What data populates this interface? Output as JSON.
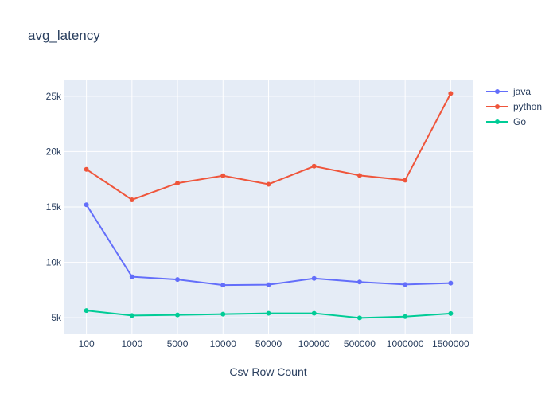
{
  "chart_data": {
    "type": "line",
    "title": "avg_latency",
    "xlabel": "Csv Row Count",
    "ylabel": "",
    "categories": [
      "100",
      "1000",
      "5000",
      "10000",
      "50000",
      "100000",
      "500000",
      "1000000",
      "1500000"
    ],
    "ylim": [
      3500,
      26500
    ],
    "yticks": [
      5000,
      10000,
      15000,
      20000,
      25000
    ],
    "ytick_labels": [
      "5k",
      "10k",
      "15k",
      "20k",
      "25k"
    ],
    "grid": true,
    "legend_position": "top-right",
    "series": [
      {
        "name": "java",
        "color": "#636efa",
        "values": [
          15200,
          8700,
          8450,
          7950,
          7980,
          8550,
          8230,
          8000,
          8130
        ]
      },
      {
        "name": "python",
        "color": "#ef553b",
        "values": [
          18400,
          15650,
          17150,
          17820,
          17050,
          18680,
          17850,
          17420,
          25250
        ]
      },
      {
        "name": "Go",
        "color": "#00cc96",
        "values": [
          5650,
          5200,
          5250,
          5320,
          5400,
          5400,
          4980,
          5100,
          5380
        ]
      }
    ]
  }
}
